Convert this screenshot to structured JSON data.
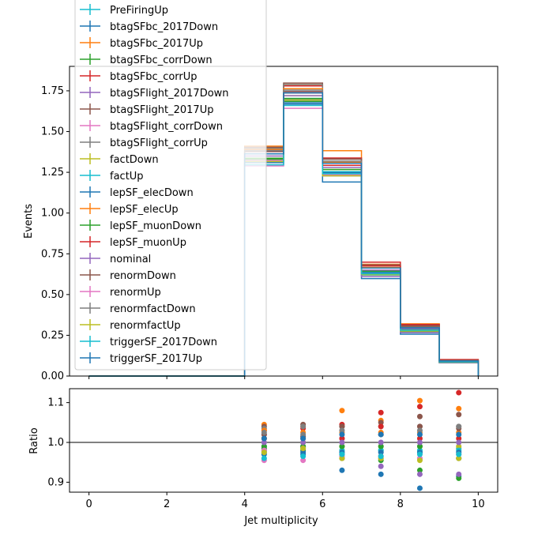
{
  "chart_data": [
    {
      "type": "step",
      "xlabel": "",
      "ylabel": "Events",
      "xlim": [
        -0.5,
        10.5
      ],
      "ylim": [
        0,
        1.9
      ],
      "xticks": [
        0,
        2,
        4,
        6,
        8,
        10
      ],
      "yticks": [
        "0.00",
        "0.25",
        "0.50",
        "0.75",
        "1.00",
        "1.25",
        "1.50",
        "1.75"
      ],
      "bin_edges": [
        0,
        4,
        5,
        6,
        7,
        8,
        9,
        10
      ],
      "nominal": [
        0,
        1.35,
        1.72,
        1.28,
        0.65,
        0.29,
        0.09
      ],
      "legend_position": "upper left",
      "series": [
        {
          "name": "PreFiringUp",
          "color": "#17becf",
          "ratio": [
            null,
            0.975,
            0.988,
            0.97,
            0.98,
            0.975,
            0.985
          ]
        },
        {
          "name": "btagSFbc_2017Down",
          "color": "#1f77b4",
          "ratio": [
            null,
            0.98,
            0.97,
            0.93,
            0.92,
            0.885,
            0.915
          ]
        },
        {
          "name": "btagSFbc_2017Up",
          "color": "#ff7f0e",
          "ratio": [
            null,
            1.045,
            1.04,
            1.08,
            1.055,
            1.105,
            1.085
          ]
        },
        {
          "name": "btagSFbc_corrDown",
          "color": "#2ca02c",
          "ratio": [
            null,
            0.985,
            0.98,
            0.96,
            0.955,
            0.93,
            0.91
          ]
        },
        {
          "name": "btagSFbc_corrUp",
          "color": "#d62728",
          "ratio": [
            null,
            1.03,
            1.035,
            1.045,
            1.075,
            1.09,
            1.125
          ]
        },
        {
          "name": "btagSFlight_2017Down",
          "color": "#9467bd",
          "ratio": [
            null,
            1.02,
            1.015,
            1.01,
            0.94,
            0.92,
            0.92
          ]
        },
        {
          "name": "btagSFlight_2017Up",
          "color": "#8c564b",
          "ratio": [
            null,
            1.04,
            1.045,
            1.04,
            1.05,
            1.065,
            1.07
          ]
        },
        {
          "name": "btagSFlight_corrDown",
          "color": "#e377c2",
          "ratio": [
            null,
            0.955,
            0.955,
            0.96,
            0.96,
            0.96,
            0.96
          ]
        },
        {
          "name": "btagSFlight_corrUp",
          "color": "#7f7f7f",
          "ratio": [
            null,
            1.035,
            1.04,
            1.04,
            1.04,
            1.04,
            1.04
          ]
        },
        {
          "name": "factDown",
          "color": "#bcbd22",
          "ratio": [
            null,
            1.01,
            1.0,
            0.99,
            0.99,
            0.99,
            0.99
          ]
        },
        {
          "name": "factUp",
          "color": "#17becf",
          "ratio": [
            null,
            0.99,
            0.99,
            0.98,
            0.98,
            0.98,
            0.98
          ]
        },
        {
          "name": "lepSF_elecDown",
          "color": "#1f77b4",
          "ratio": [
            null,
            0.97,
            0.975,
            0.975,
            0.975,
            0.975,
            0.975
          ]
        },
        {
          "name": "lepSF_elecUp",
          "color": "#ff7f0e",
          "ratio": [
            null,
            1.03,
            1.025,
            1.025,
            1.025,
            1.025,
            1.025
          ]
        },
        {
          "name": "lepSF_muonDown",
          "color": "#2ca02c",
          "ratio": [
            null,
            0.99,
            0.99,
            0.99,
            0.99,
            0.99,
            0.96
          ]
        },
        {
          "name": "lepSF_muonUp",
          "color": "#d62728",
          "ratio": [
            null,
            1.01,
            1.01,
            1.01,
            1.04,
            1.01,
            1.01
          ]
        },
        {
          "name": "nominal",
          "color": "#9467bd",
          "ratio": [
            null,
            1.0,
            1.0,
            1.0,
            1.0,
            1.0,
            1.0
          ]
        },
        {
          "name": "renormDown",
          "color": "#8c564b",
          "ratio": [
            null,
            1.02,
            1.015,
            1.04,
            1.02,
            1.04,
            1.035
          ]
        },
        {
          "name": "renormUp",
          "color": "#e377c2",
          "ratio": [
            null,
            0.98,
            0.985,
            0.965,
            0.965,
            0.96,
            0.97
          ]
        },
        {
          "name": "renormfactDown",
          "color": "#7f7f7f",
          "ratio": [
            null,
            1.025,
            1.02,
            1.03,
            1.02,
            1.03,
            1.04
          ]
        },
        {
          "name": "renormfactUp",
          "color": "#bcbd22",
          "ratio": [
            null,
            0.975,
            0.985,
            0.96,
            0.96,
            0.955,
            0.96
          ]
        },
        {
          "name": "triggerSF_2017Down",
          "color": "#17becf",
          "ratio": [
            null,
            0.96,
            0.965,
            0.97,
            0.965,
            0.97,
            0.97
          ]
        },
        {
          "name": "triggerSF_2017Up",
          "color": "#1f77b4",
          "ratio": [
            null,
            1.01,
            1.01,
            1.02,
            1.02,
            1.02,
            1.02
          ]
        }
      ]
    },
    {
      "type": "scatter",
      "xlabel": "Jet multiplicity",
      "ylabel": "Ratio",
      "xlim": [
        -0.5,
        10.5
      ],
      "ylim": [
        0.875,
        1.135
      ],
      "xticks": [
        0,
        2,
        4,
        6,
        8,
        10
      ],
      "yticks": [
        "0.9",
        "1.0",
        "1.1"
      ],
      "reference_line": 1.0
    }
  ]
}
